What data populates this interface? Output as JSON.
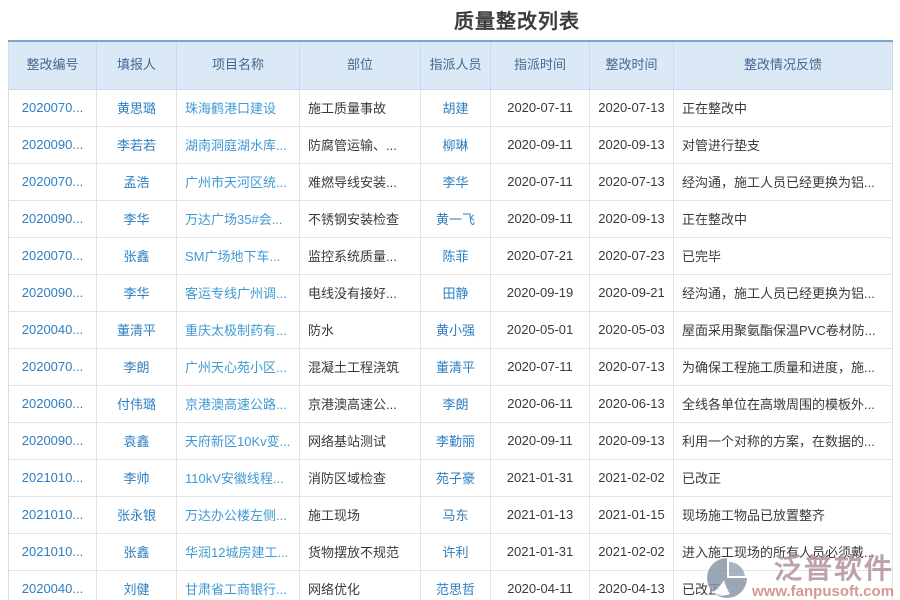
{
  "title": "质量整改列表",
  "table": {
    "columns": [
      {
        "key": "id",
        "label": "整改编号"
      },
      {
        "key": "reporter",
        "label": "填报人"
      },
      {
        "key": "project",
        "label": "项目名称"
      },
      {
        "key": "part",
        "label": "部位"
      },
      {
        "key": "assignee",
        "label": "指派人员"
      },
      {
        "key": "assign_time",
        "label": "指派时间"
      },
      {
        "key": "rectify_time",
        "label": "整改时间"
      },
      {
        "key": "feedback",
        "label": "整改情况反馈"
      }
    ],
    "rows": [
      {
        "id": "2020070...",
        "reporter": "黄思璐",
        "project": "珠海鹤港口建设",
        "part": "施工质量事故",
        "assignee": "胡建",
        "assign_time": "2020-07-11",
        "rectify_time": "2020-07-13",
        "feedback": "正在整改中"
      },
      {
        "id": "2020090...",
        "reporter": "李若若",
        "project": "湖南洞庭湖水库...",
        "part": "防腐管运输、...",
        "assignee": "柳琳",
        "assign_time": "2020-09-11",
        "rectify_time": "2020-09-13",
        "feedback": "对管进行垫支"
      },
      {
        "id": "2020070...",
        "reporter": "孟浩",
        "project": "广州市天河区统...",
        "part": "难燃导线安装...",
        "assignee": "李华",
        "assign_time": "2020-07-11",
        "rectify_time": "2020-07-13",
        "feedback": "经沟通，施工人员已经更换为铝..."
      },
      {
        "id": "2020090...",
        "reporter": "李华",
        "project": "万达广场35#会...",
        "part": "不锈钢安装检查",
        "assignee": "黄一飞",
        "assign_time": "2020-09-11",
        "rectify_time": "2020-09-13",
        "feedback": "正在整改中"
      },
      {
        "id": "2020070...",
        "reporter": "张鑫",
        "project": "SM广场地下车...",
        "part": "监控系统质量...",
        "assignee": "陈菲",
        "assign_time": "2020-07-21",
        "rectify_time": "2020-07-23",
        "feedback": "已完毕"
      },
      {
        "id": "2020090...",
        "reporter": "李华",
        "project": "客运专线广州调...",
        "part": "电线没有接好...",
        "assignee": "田静",
        "assign_time": "2020-09-19",
        "rectify_time": "2020-09-21",
        "feedback": "经沟通，施工人员已经更换为铝..."
      },
      {
        "id": "2020040...",
        "reporter": "董清平",
        "project": "重庆太极制药有...",
        "part": "防水",
        "assignee": "黄小强",
        "assign_time": "2020-05-01",
        "rectify_time": "2020-05-03",
        "feedback": "屋面采用聚氨酯保温PVC卷材防..."
      },
      {
        "id": "2020070...",
        "reporter": "李朗",
        "project": "广州天心苑小区...",
        "part": "混凝土工程浇筑",
        "assignee": "董清平",
        "assign_time": "2020-07-11",
        "rectify_time": "2020-07-13",
        "feedback": "为确保工程施工质量和进度，施..."
      },
      {
        "id": "2020060...",
        "reporter": "付伟璐",
        "project": "京港澳高速公路...",
        "part": "京港澳高速公...",
        "assignee": "李朗",
        "assign_time": "2020-06-11",
        "rectify_time": "2020-06-13",
        "feedback": "全线各单位在高墩周围的模板外..."
      },
      {
        "id": "2020090...",
        "reporter": "袁鑫",
        "project": "天府新区10Kv变...",
        "part": "网络基站测试",
        "assignee": "李勤丽",
        "assign_time": "2020-09-11",
        "rectify_time": "2020-09-13",
        "feedback": "利用一个对称的方案，在数据的..."
      },
      {
        "id": "2021010...",
        "reporter": "李帅",
        "project": "110kV安徽线程...",
        "part": "消防区域检查",
        "assignee": "苑子豪",
        "assign_time": "2021-01-31",
        "rectify_time": "2021-02-02",
        "feedback": "已改正"
      },
      {
        "id": "2021010...",
        "reporter": "张永银",
        "project": "万达办公楼左侧...",
        "part": "施工现场",
        "assignee": "马东",
        "assign_time": "2021-01-13",
        "rectify_time": "2021-01-15",
        "feedback": "现场施工物品已放置整齐"
      },
      {
        "id": "2021010...",
        "reporter": "张鑫",
        "project": "华润12城房建工...",
        "part": "货物摆放不规范",
        "assignee": "许利",
        "assign_time": "2021-01-31",
        "rectify_time": "2021-02-02",
        "feedback": "进入施工现场的所有人员必须戴..."
      },
      {
        "id": "2020040...",
        "reporter": "刘健",
        "project": "甘肃省工商银行...",
        "part": "网络优化",
        "assignee": "范思哲",
        "assign_time": "2020-04-11",
        "rectify_time": "2020-04-13",
        "feedback": "已改正"
      }
    ]
  },
  "watermark": {
    "brand": "泛普软件",
    "url": "www.fanpusoft.com"
  },
  "colors": {
    "header_bg": "#dbe9f7",
    "header_text": "#44688f",
    "header_top_border": "#7aa7d2",
    "link_blue": "#2e7fc1",
    "project_blue": "#3f9ad2",
    "body_text": "#3a3a3a",
    "watermark_brand": "#b3929c",
    "watermark_url": "#d08585"
  }
}
